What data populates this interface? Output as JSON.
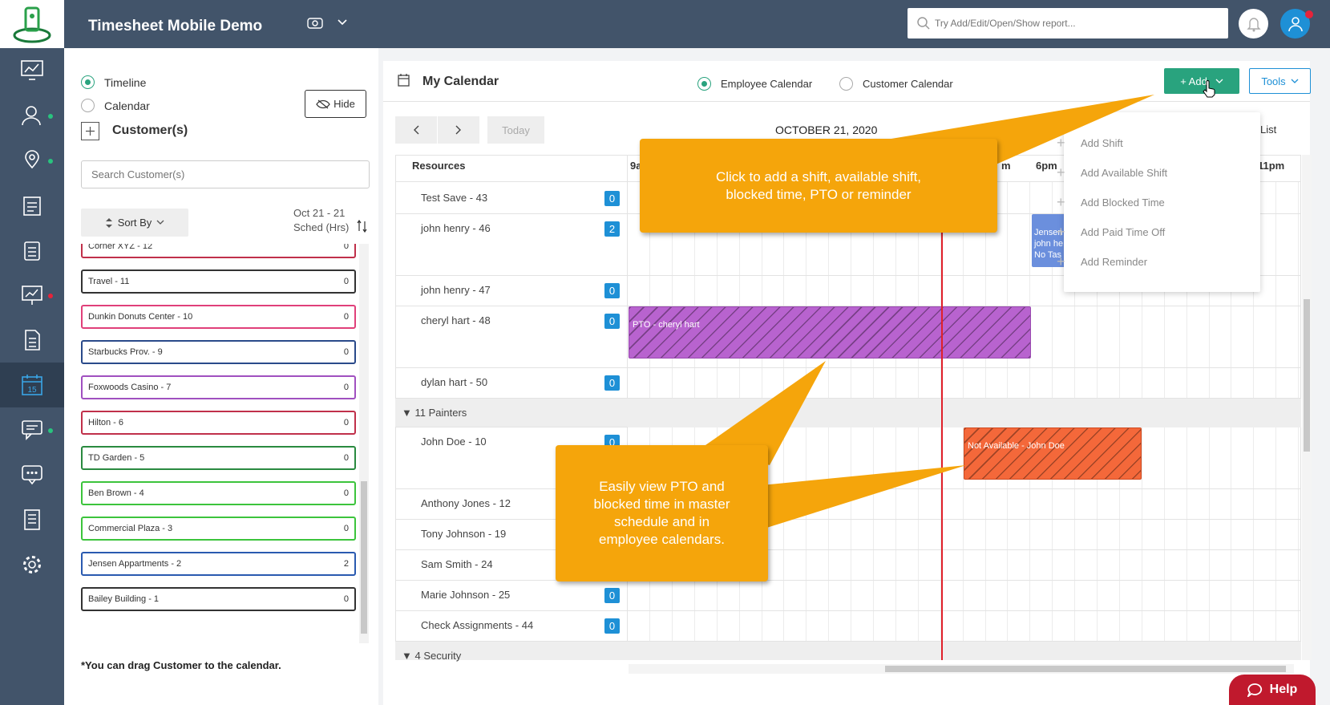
{
  "app": {
    "title": "Timesheet Mobile Demo"
  },
  "header": {
    "search_placeholder": "Try Add/Edit/Open/Show report..."
  },
  "left_panel": {
    "views": [
      {
        "label": "Timeline",
        "selected": true
      },
      {
        "label": "Calendar",
        "selected": false
      }
    ],
    "hide_label": "Hide",
    "section_title": "Customer(s)",
    "search_placeholder": "Search Customer(s)",
    "sort_label": "Sort By",
    "date_range": "Oct 21 - 21",
    "sched_label": "Sched (Hrs)",
    "customers": [
      {
        "name": "Corner XYZ - 12",
        "hours": "0",
        "color": "#c0304a"
      },
      {
        "name": "Travel - 11",
        "hours": "0",
        "color": "#333333"
      },
      {
        "name": "Dunkin Donuts Center - 10",
        "hours": "0",
        "color": "#e0407a"
      },
      {
        "name": "Starbucks Prov. - 9",
        "hours": "0",
        "color": "#2a4a8a"
      },
      {
        "name": "Foxwoods Casino - 7",
        "hours": "0",
        "color": "#a050c0"
      },
      {
        "name": "Hilton - 6",
        "hours": "0",
        "color": "#c0304a"
      },
      {
        "name": "TD Garden - 5",
        "hours": "0",
        "color": "#2a8a40"
      },
      {
        "name": "Ben Brown - 4",
        "hours": "0",
        "color": "#3cc43c"
      },
      {
        "name": "Commercial Plaza - 3",
        "hours": "0",
        "color": "#3cc43c"
      },
      {
        "name": "Jensen Appartments - 2",
        "hours": "2",
        "color": "#2a5ab0"
      },
      {
        "name": "Bailey Building - 1",
        "hours": "0",
        "color": "#333333"
      }
    ],
    "footer_note": "*You can drag Customer to the calendar."
  },
  "calendar": {
    "title": "My Calendar",
    "type_options": [
      {
        "label": "Employee Calendar",
        "selected": true
      },
      {
        "label": "Customer Calendar",
        "selected": false
      }
    ],
    "add_label": "+ Add",
    "tools_label": "Tools",
    "today_label": "Today",
    "date": "OCTOBER 21, 2020",
    "list_label": "List",
    "resources_header": "Resources",
    "hour_labels": [
      "9a",
      "m",
      "6pm",
      "11pm"
    ],
    "rows": [
      {
        "name": "Test Save - 43",
        "count": "0"
      },
      {
        "name": "john henry - 46",
        "count": "2"
      },
      {
        "name": "john henry - 47",
        "count": "0"
      },
      {
        "name": "cheryl hart - 48",
        "count": "0"
      },
      {
        "name": "dylan hart - 50",
        "count": "0"
      }
    ],
    "group1": "11 Painters",
    "rows2": [
      {
        "name": "John Doe - 10",
        "count": "0"
      },
      {
        "name": "Anthony Jones - 12"
      },
      {
        "name": "Tony Johnson - 19"
      },
      {
        "name": "Sam Smith - 24"
      },
      {
        "name": "Marie Johnson - 25",
        "count": "0"
      },
      {
        "name": "Check Assignments - 44",
        "count": "0"
      }
    ],
    "group2": "4 Security",
    "events": {
      "pto": "PTO - cheryl hart",
      "not_available": "Not Available - John Doe",
      "shift_lines": [
        "Jensen",
        "john he",
        "No Tas"
      ]
    }
  },
  "add_menu": [
    "Add Shift",
    "Add Available Shift",
    "Add Blocked Time",
    "Add Paid Time Off",
    "Add Reminder"
  ],
  "callouts": {
    "top": "Click to add a shift, available shift,\nblocked time, PTO or reminder",
    "bottom": "Easily view PTO and\nblocked time in master\nschedule and in\nemployee calendars."
  },
  "help_label": "Help",
  "colors": {
    "sidebar": "#42546a",
    "accent": "#29a37e",
    "count_badge": "#1e90d6",
    "pto": "#b863cf",
    "not_available": "#f4683a",
    "shift": "#6b8fdd",
    "callout": "#f5a50b",
    "help": "#c0192d"
  }
}
